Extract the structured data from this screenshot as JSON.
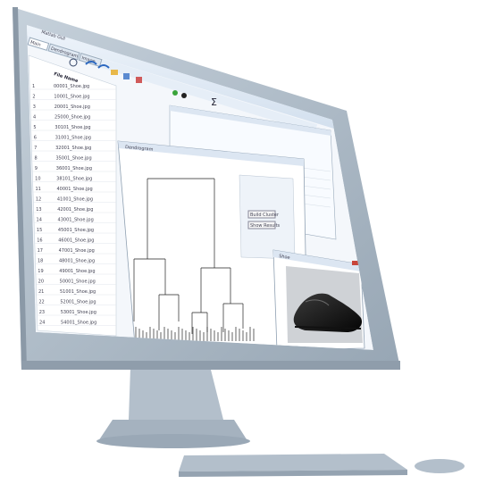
{
  "app": {
    "window_title": "Matlab GUI",
    "tabs": [
      "Main",
      "Dendrogram",
      "Image"
    ]
  },
  "table": {
    "header_col": "File Name",
    "rows": [
      {
        "num": "1",
        "name": "00001_Shoe.jpg"
      },
      {
        "num": "2",
        "name": "10001_Shoe.jpg"
      },
      {
        "num": "3",
        "name": "20001_Shoe.jpg"
      },
      {
        "num": "4",
        "name": "25000_Shoe.jpg"
      },
      {
        "num": "5",
        "name": "30101_Shoe.jpg"
      },
      {
        "num": "6",
        "name": "31001_Shoe.jpg"
      },
      {
        "num": "7",
        "name": "32001_Shoe.jpg"
      },
      {
        "num": "8",
        "name": "35001_Shoe.jpg"
      },
      {
        "num": "9",
        "name": "36001_Shoe.jpg"
      },
      {
        "num": "10",
        "name": "38101_Shoe.jpg"
      },
      {
        "num": "11",
        "name": "40001_Shoe.jpg"
      },
      {
        "num": "12",
        "name": "41001_Shoe.jpg"
      },
      {
        "num": "13",
        "name": "42001_Shoe.jpg"
      },
      {
        "num": "14",
        "name": "43001_Shoe.jpg"
      },
      {
        "num": "15",
        "name": "45001_Shoe.jpg"
      },
      {
        "num": "16",
        "name": "46001_Shoe.jpg"
      },
      {
        "num": "17",
        "name": "47001_Shoe.jpg"
      },
      {
        "num": "18",
        "name": "48001_Shoe.jpg"
      },
      {
        "num": "19",
        "name": "49001_Shoe.jpg"
      },
      {
        "num": "20",
        "name": "50001_Shoe.jpg"
      },
      {
        "num": "21",
        "name": "51001_Shoe.jpg"
      },
      {
        "num": "22",
        "name": "52001_Shoe.jpg"
      },
      {
        "num": "23",
        "name": "53001_Shoe.jpg"
      },
      {
        "num": "24",
        "name": "54001_Shoe.jpg"
      }
    ]
  },
  "dendrogram": {
    "title": "Dendrogram",
    "buttons": [
      "Build Cluster",
      "Show Results"
    ]
  },
  "preview": {
    "title": "Shoe",
    "image": "dress-shoe-photo"
  },
  "colors": {
    "monitor_frame": "#a9b7c4",
    "monitor_shadow": "#8b99a7",
    "window_chrome": "#dce6f2",
    "accent": "#3a77c2"
  }
}
